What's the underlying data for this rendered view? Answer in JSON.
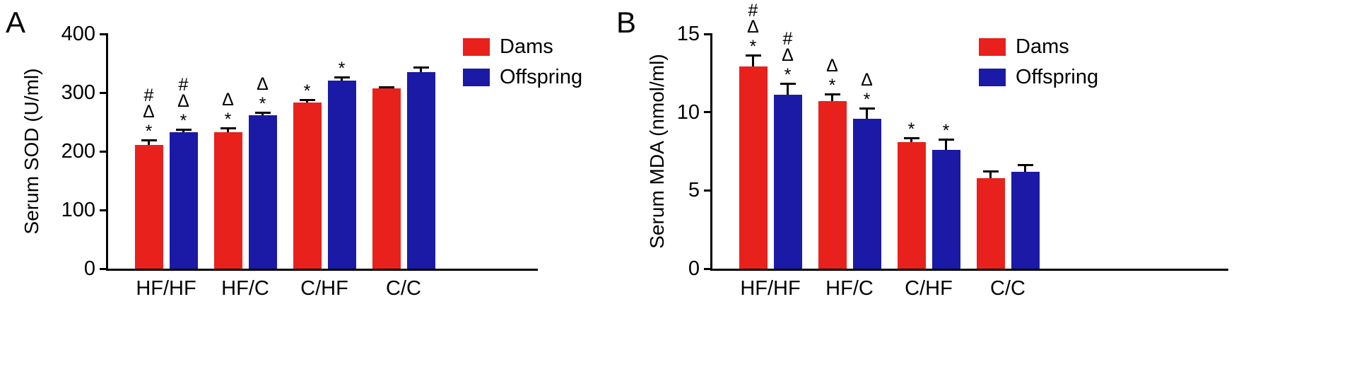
{
  "figure": {
    "background": "#ffffff",
    "text_color": "#000000"
  },
  "chart_data": [
    {
      "type": "bar",
      "panel_label": "A",
      "ylabel": "Serum SOD (U/ml)",
      "xlabel": "",
      "ylim": [
        0,
        400
      ],
      "yticks": [
        0,
        100,
        200,
        300,
        400
      ],
      "categories": [
        "HF/HF",
        "HF/C",
        "C/HF",
        "C/C"
      ],
      "series": [
        {
          "name": "Dams",
          "color": "#e8211c",
          "values": [
            211,
            233,
            283,
            307
          ],
          "errors": [
            10,
            8,
            6,
            4
          ],
          "annotations": [
            [
              "#",
              "Δ",
              "*"
            ],
            [
              "Δ",
              "*"
            ],
            [
              "*"
            ],
            []
          ]
        },
        {
          "name": "Offspring",
          "color": "#1b1aa6",
          "values": [
            232,
            262,
            320,
            335
          ],
          "errors": [
            7,
            6,
            8,
            9
          ],
          "annotations": [
            [
              "#",
              "Δ",
              "*"
            ],
            [
              "Δ",
              "*"
            ],
            [
              "*"
            ],
            []
          ]
        }
      ],
      "legend_position": "top-right",
      "grid": false
    },
    {
      "type": "bar",
      "panel_label": "B",
      "ylabel": "Serum MDA (nmol/ml)",
      "xlabel": "",
      "ylim": [
        0,
        15
      ],
      "yticks": [
        0,
        5,
        10,
        15
      ],
      "categories": [
        "HF/HF",
        "HF/C",
        "C/HF",
        "C/C"
      ],
      "series": [
        {
          "name": "Dams",
          "color": "#e8211c",
          "values": [
            12.9,
            10.7,
            8.1,
            5.8
          ],
          "errors": [
            0.8,
            0.5,
            0.3,
            0.5
          ],
          "annotations": [
            [
              "#",
              "Δ",
              "*"
            ],
            [
              "Δ",
              "*"
            ],
            [
              "*"
            ],
            []
          ]
        },
        {
          "name": "Offspring",
          "color": "#1b1aa6",
          "values": [
            11.1,
            9.6,
            7.6,
            6.2
          ],
          "errors": [
            0.8,
            0.7,
            0.7,
            0.5
          ],
          "annotations": [
            [
              "#",
              "Δ",
              "*"
            ],
            [
              "Δ",
              "*"
            ],
            [
              "*"
            ],
            []
          ]
        }
      ],
      "legend_position": "top-right",
      "grid": false
    }
  ]
}
